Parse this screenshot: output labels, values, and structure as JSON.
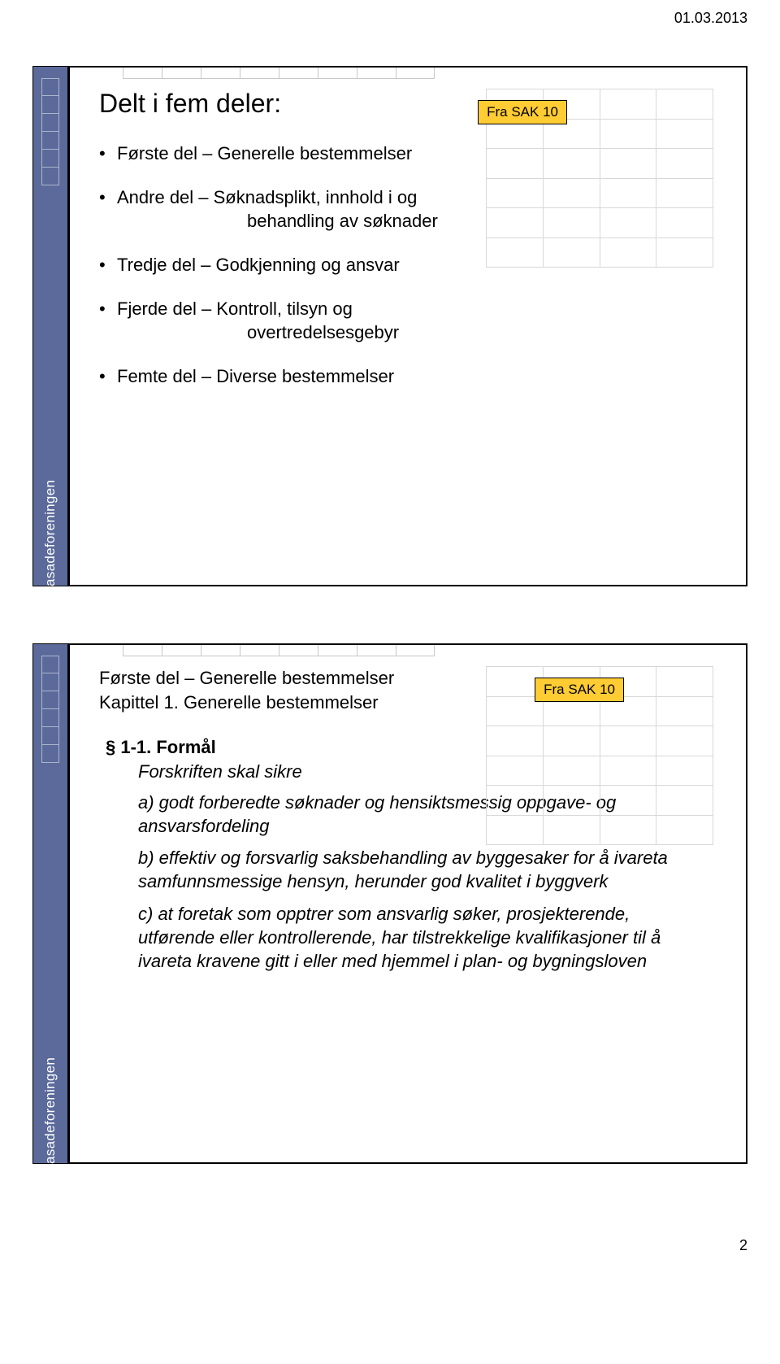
{
  "page": {
    "date": "01.03.2013",
    "number": "2"
  },
  "badge": {
    "text": "Fra SAK 10",
    "bg": "#ffcc33"
  },
  "slide1": {
    "title": "Delt i fem deler:",
    "items": [
      {
        "main": "Første del – Generelle bestemmelser",
        "cont": ""
      },
      {
        "main": "Andre del – Søknadsplikt, innhold i og",
        "cont": "behandling av søknader"
      },
      {
        "main": "Tredje del – Godkjenning og ansvar",
        "cont": ""
      },
      {
        "main": "Fjerde del – Kontroll, tilsyn og",
        "cont": "overtredelsesgebyr"
      },
      {
        "main": "Femte del – Diverse bestemmelser",
        "cont": ""
      }
    ]
  },
  "slide2": {
    "subtitle_line1": "Første del – Generelle bestemmelser",
    "subtitle_line2": "Kapittel 1. Generelle bestemmelser",
    "section": "§ 1-1. Formål",
    "intro": "Forskriften skal sikre",
    "clauses": [
      "a) godt forberedte søknader og hensiktsmessig oppgave- og ansvarsfordeling",
      "b) effektiv og forsvarlig saksbehandling av byggesaker for å ivareta samfunnsmessige hensyn, herunder god kvalitet i byggverk",
      "c) at foretak som opptrer som ansvarlig søker, prosjekterende, utførende eller kontrollerende, har tilstrekkelige kvalifikasjoner til å ivareta kravene gitt i eller med hjemmel i plan- og bygningsloven"
    ]
  },
  "style": {
    "sidebar_color": "#5b6a9a",
    "text_color": "#000000",
    "bg_color": "#ffffff",
    "grid_color": "#d8d8d8",
    "title_fontsize": 32,
    "body_fontsize": 22,
    "badge_fontsize": 17
  }
}
